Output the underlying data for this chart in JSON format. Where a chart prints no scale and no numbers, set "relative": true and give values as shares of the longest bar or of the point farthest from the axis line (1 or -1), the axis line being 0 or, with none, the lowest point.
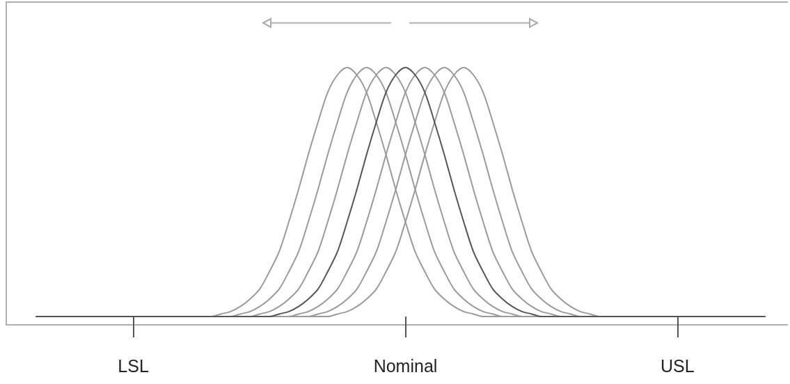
{
  "chart_data": {
    "type": "line",
    "relative": true,
    "marker": "none",
    "line_style": "solid",
    "categories": [
      null,
      null,
      null,
      null,
      null,
      null,
      null,
      null,
      null,
      null,
      "LSL",
      null,
      null,
      null,
      null,
      null,
      null,
      null,
      null,
      null,
      null,
      null,
      null,
      null,
      null,
      null,
      null,
      null,
      null,
      null,
      null,
      null,
      null,
      null,
      null,
      null,
      null,
      null,
      "Nominal",
      null,
      null,
      null,
      null,
      null,
      null,
      null,
      null,
      null,
      null,
      null,
      null,
      null,
      null,
      null,
      null,
      null,
      null,
      null,
      null,
      null,
      null,
      null,
      null,
      null,
      null,
      null,
      "USL",
      null,
      null,
      null,
      null,
      null,
      null,
      null,
      null,
      null
    ],
    "series": [
      {
        "color": "#9a9a9a",
        "values": [
          0,
          0,
          0,
          0,
          0,
          0,
          0,
          0,
          0,
          0,
          0,
          0,
          0,
          0,
          0,
          0,
          0,
          0,
          0,
          0.01,
          0.02,
          0.04,
          0.07,
          0.11,
          0.18,
          0.26,
          0.38,
          0.51,
          0.65,
          0.78,
          0.9,
          0.97,
          1,
          0.97,
          0.9,
          0.78,
          0.65,
          0.51,
          0.38,
          0.26,
          0.18,
          0.11,
          0.07,
          0.04,
          0.02,
          0.01,
          0,
          0,
          0,
          0,
          0,
          0,
          0,
          0,
          0,
          0,
          0,
          0,
          0,
          0,
          0,
          0,
          0,
          0,
          0,
          0,
          0,
          0,
          0,
          0,
          0,
          0,
          0,
          0,
          0,
          0
        ]
      },
      {
        "color": "#9a9a9a",
        "values": [
          0,
          0,
          0,
          0,
          0,
          0,
          0,
          0,
          0,
          0,
          0,
          0,
          0,
          0,
          0,
          0,
          0,
          0,
          0,
          0,
          0,
          0.01,
          0.02,
          0.04,
          0.07,
          0.11,
          0.18,
          0.26,
          0.38,
          0.51,
          0.65,
          0.78,
          0.9,
          0.97,
          1,
          0.97,
          0.9,
          0.78,
          0.65,
          0.51,
          0.38,
          0.26,
          0.18,
          0.11,
          0.07,
          0.04,
          0.02,
          0.01,
          0,
          0,
          0,
          0,
          0,
          0,
          0,
          0,
          0,
          0,
          0,
          0,
          0,
          0,
          0,
          0,
          0,
          0,
          0,
          0,
          0,
          0,
          0,
          0,
          0,
          0,
          0,
          0
        ]
      },
      {
        "color": "#9a9a9a",
        "values": [
          0,
          0,
          0,
          0,
          0,
          0,
          0,
          0,
          0,
          0,
          0,
          0,
          0,
          0,
          0,
          0,
          0,
          0,
          0,
          0,
          0,
          0,
          0,
          0.01,
          0.02,
          0.04,
          0.07,
          0.11,
          0.18,
          0.26,
          0.38,
          0.51,
          0.65,
          0.78,
          0.9,
          0.97,
          1,
          0.97,
          0.9,
          0.78,
          0.65,
          0.51,
          0.38,
          0.26,
          0.18,
          0.11,
          0.07,
          0.04,
          0.02,
          0.01,
          0,
          0,
          0,
          0,
          0,
          0,
          0,
          0,
          0,
          0,
          0,
          0,
          0,
          0,
          0,
          0,
          0,
          0,
          0,
          0,
          0,
          0,
          0,
          0,
          0,
          0
        ]
      },
      {
        "color": "#555555",
        "values": [
          0,
          0,
          0,
          0,
          0,
          0,
          0,
          0,
          0,
          0,
          0,
          0,
          0,
          0,
          0,
          0,
          0,
          0,
          0,
          0,
          0,
          0,
          0,
          0,
          0,
          0.01,
          0.02,
          0.04,
          0.07,
          0.11,
          0.18,
          0.26,
          0.38,
          0.51,
          0.65,
          0.78,
          0.9,
          0.97,
          1,
          0.97,
          0.9,
          0.78,
          0.65,
          0.51,
          0.38,
          0.26,
          0.18,
          0.11,
          0.07,
          0.04,
          0.02,
          0.01,
          0,
          0,
          0,
          0,
          0,
          0,
          0,
          0,
          0,
          0,
          0,
          0,
          0,
          0,
          0,
          0,
          0,
          0,
          0,
          0,
          0,
          0,
          0,
          0
        ]
      },
      {
        "color": "#9a9a9a",
        "values": [
          0,
          0,
          0,
          0,
          0,
          0,
          0,
          0,
          0,
          0,
          0,
          0,
          0,
          0,
          0,
          0,
          0,
          0,
          0,
          0,
          0,
          0,
          0,
          0,
          0,
          0,
          0,
          0.01,
          0.02,
          0.04,
          0.07,
          0.11,
          0.18,
          0.26,
          0.38,
          0.51,
          0.65,
          0.78,
          0.9,
          0.97,
          1,
          0.97,
          0.9,
          0.78,
          0.65,
          0.51,
          0.38,
          0.26,
          0.18,
          0.11,
          0.07,
          0.04,
          0.02,
          0.01,
          0,
          0,
          0,
          0,
          0,
          0,
          0,
          0,
          0,
          0,
          0,
          0,
          0,
          0,
          0,
          0,
          0,
          0,
          0,
          0,
          0,
          0
        ]
      },
      {
        "color": "#9a9a9a",
        "values": [
          0,
          0,
          0,
          0,
          0,
          0,
          0,
          0,
          0,
          0,
          0,
          0,
          0,
          0,
          0,
          0,
          0,
          0,
          0,
          0,
          0,
          0,
          0,
          0,
          0,
          0,
          0,
          0,
          0,
          0.01,
          0.02,
          0.04,
          0.07,
          0.11,
          0.18,
          0.26,
          0.38,
          0.51,
          0.65,
          0.78,
          0.9,
          0.97,
          1,
          0.97,
          0.9,
          0.78,
          0.65,
          0.51,
          0.38,
          0.26,
          0.18,
          0.11,
          0.07,
          0.04,
          0.02,
          0.01,
          0,
          0,
          0,
          0,
          0,
          0,
          0,
          0,
          0,
          0,
          0,
          0,
          0,
          0,
          0,
          0,
          0,
          0,
          0,
          0
        ]
      },
      {
        "color": "#9a9a9a",
        "values": [
          0,
          0,
          0,
          0,
          0,
          0,
          0,
          0,
          0,
          0,
          0,
          0,
          0,
          0,
          0,
          0,
          0,
          0,
          0,
          0,
          0,
          0,
          0,
          0,
          0,
          0,
          0,
          0,
          0,
          0,
          0,
          0.01,
          0.02,
          0.04,
          0.07,
          0.11,
          0.18,
          0.26,
          0.38,
          0.51,
          0.65,
          0.78,
          0.9,
          0.97,
          1,
          0.97,
          0.9,
          0.78,
          0.65,
          0.51,
          0.38,
          0.26,
          0.18,
          0.11,
          0.07,
          0.04,
          0.02,
          0.01,
          0,
          0,
          0,
          0,
          0,
          0,
          0,
          0,
          0,
          0,
          0,
          0,
          0,
          0,
          0,
          0,
          0,
          0
        ]
      }
    ]
  }
}
